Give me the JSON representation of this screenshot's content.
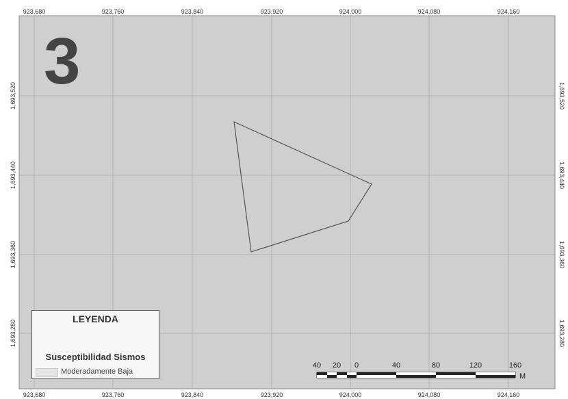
{
  "map": {
    "sheet_number": "3",
    "x_ticks": [
      "923,680",
      "923,760",
      "923,840",
      "923,920",
      "924,000",
      "924,080",
      "924,160"
    ],
    "y_ticks": [
      "1,693,520",
      "1,693,440",
      "1,693,360",
      "1,693,280"
    ],
    "colors": {
      "frame": "#cfcfcf",
      "grid": "#aaaaaa",
      "polygon_stroke": "#555555",
      "legend_swatch": "#e4e4e4"
    }
  },
  "legend": {
    "title": "LEYENDA",
    "subtitle": "Susceptibilidad Sismos",
    "items": [
      {
        "label": "Moderadamente Baja"
      }
    ]
  },
  "scale_bar": {
    "labels": [
      "40",
      "20",
      "0",
      "40",
      "80",
      "120",
      "160"
    ],
    "unit": "M"
  }
}
